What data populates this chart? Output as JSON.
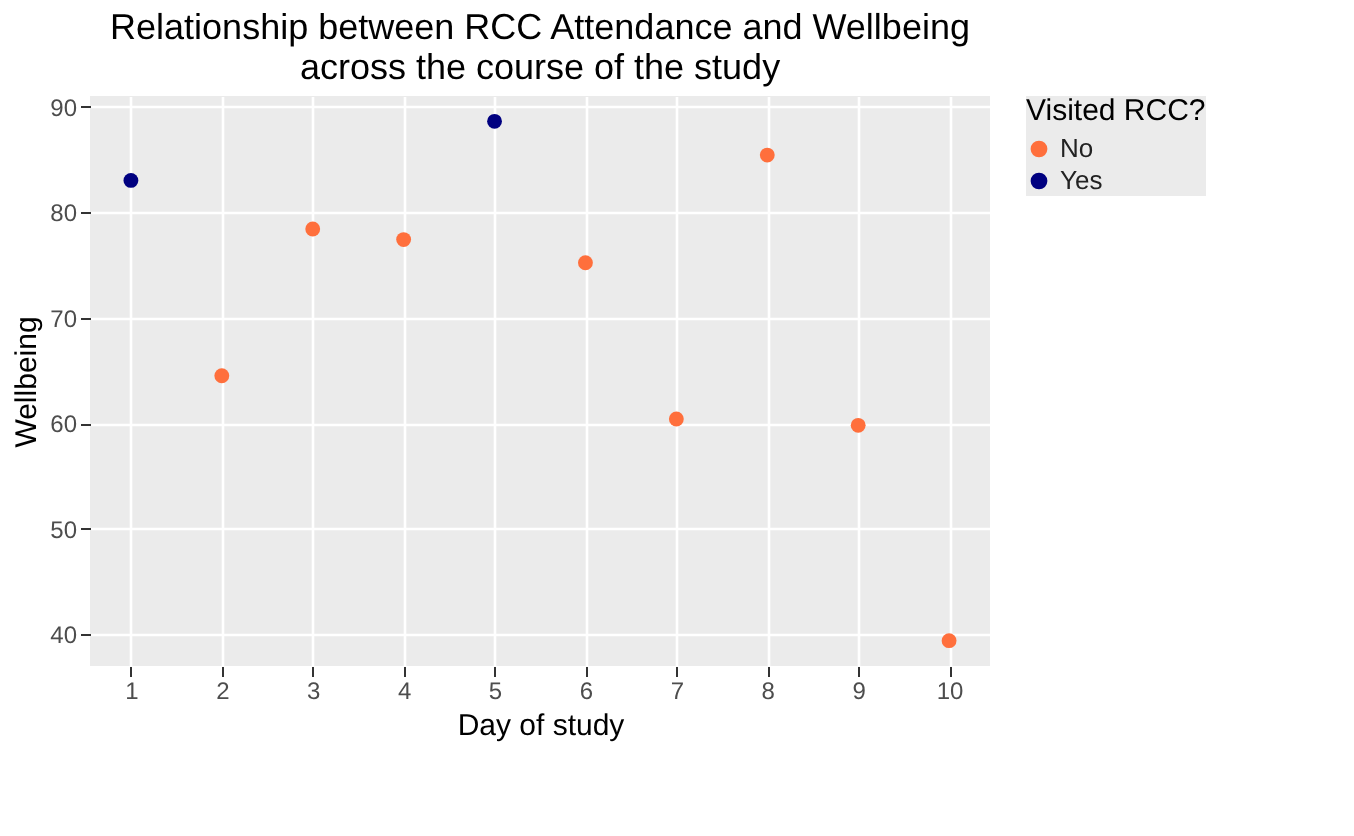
{
  "chart_data": {
    "type": "scatter",
    "title": [
      "Relationship between RCC Attendance and Wellbeing",
      "across the course of the study"
    ],
    "xlabel": "Day of study",
    "ylabel": "Wellbeing",
    "legend_title": "Visited RCC?",
    "series": [
      {
        "name": "No",
        "color": "#ff6f3c",
        "x": [
          2,
          3,
          4,
          6,
          7,
          8,
          9,
          10
        ],
        "values": [
          64.5,
          78.4,
          77.4,
          75.2,
          60.4,
          85.4,
          59.8,
          39.4
        ]
      },
      {
        "name": "Yes",
        "color": "#000080",
        "x": [
          1,
          5
        ],
        "values": [
          83,
          88.6
        ]
      }
    ],
    "xlim": [
      0.55,
      10.45
    ],
    "xticks": [
      1,
      2,
      3,
      4,
      5,
      6,
      7,
      8,
      9,
      10
    ],
    "ylim": [
      37,
      91
    ],
    "yticks": [
      40,
      50,
      60,
      70,
      80,
      90
    ],
    "grid": true,
    "legend": "right",
    "marker": "circle"
  }
}
